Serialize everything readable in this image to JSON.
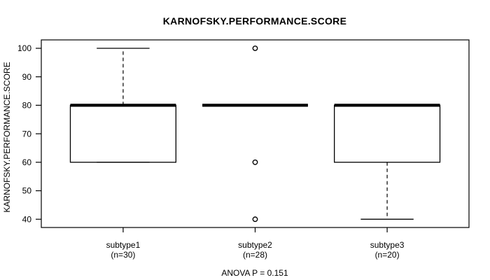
{
  "chart_data": {
    "type": "boxplot",
    "title": "KARNOFSKY.PERFORMANCE.SCORE",
    "ylabel": "KARNOFSKY.PERFORMANCE.SCORE",
    "xlabel": "",
    "annotation": "ANOVA P = 0.151",
    "ylim": [
      40,
      100
    ],
    "yticks": [
      40,
      50,
      60,
      70,
      80,
      90,
      100
    ],
    "grid": false,
    "legend_position": "none",
    "groups": [
      {
        "label": "subtype1",
        "sublabel": "(n=30)",
        "whisker_low": 60,
        "q1": 60,
        "median": 80,
        "q3": 80,
        "whisker_high": 100,
        "outliers": []
      },
      {
        "label": "subtype2",
        "sublabel": "(n=28)",
        "whisker_low": 80,
        "q1": 80,
        "median": 80,
        "q3": 80,
        "whisker_high": 80,
        "outliers": [
          100,
          60,
          40
        ]
      },
      {
        "label": "subtype3",
        "sublabel": "(n=20)",
        "whisker_low": 40,
        "q1": 60,
        "median": 80,
        "q3": 80,
        "whisker_high": 80,
        "outliers": []
      }
    ],
    "colors": {
      "foreground": "#000000",
      "background": "#ffffff"
    }
  }
}
